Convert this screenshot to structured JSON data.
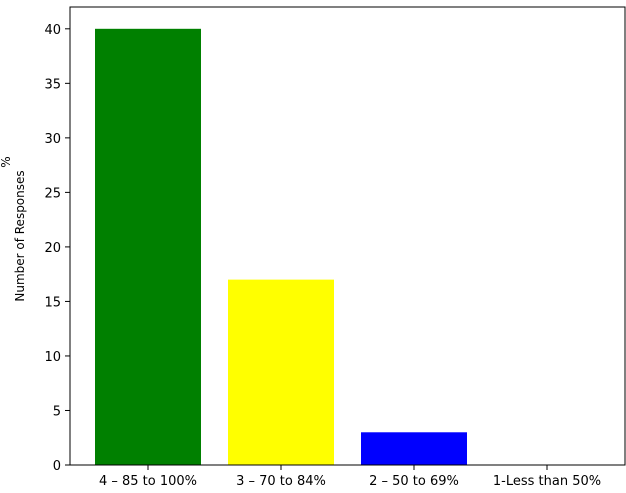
{
  "chart_data": {
    "type": "bar",
    "categories": [
      "4 – 85 to 100%",
      "3 – 70 to 84%",
      "2 – 50 to 69%",
      "1-Less than 50%"
    ],
    "values": [
      40,
      17,
      3,
      0
    ],
    "colors": [
      "#008000",
      "#ffff00",
      "#0000ff",
      "#ffffff"
    ],
    "title": "",
    "xlabel": "",
    "ylabel": "Number of Responses",
    "ylim": [
      0,
      42
    ],
    "yticks": [
      0,
      5,
      10,
      15,
      20,
      25,
      30,
      35,
      40
    ],
    "grid": false,
    "clipped_text": "%"
  }
}
